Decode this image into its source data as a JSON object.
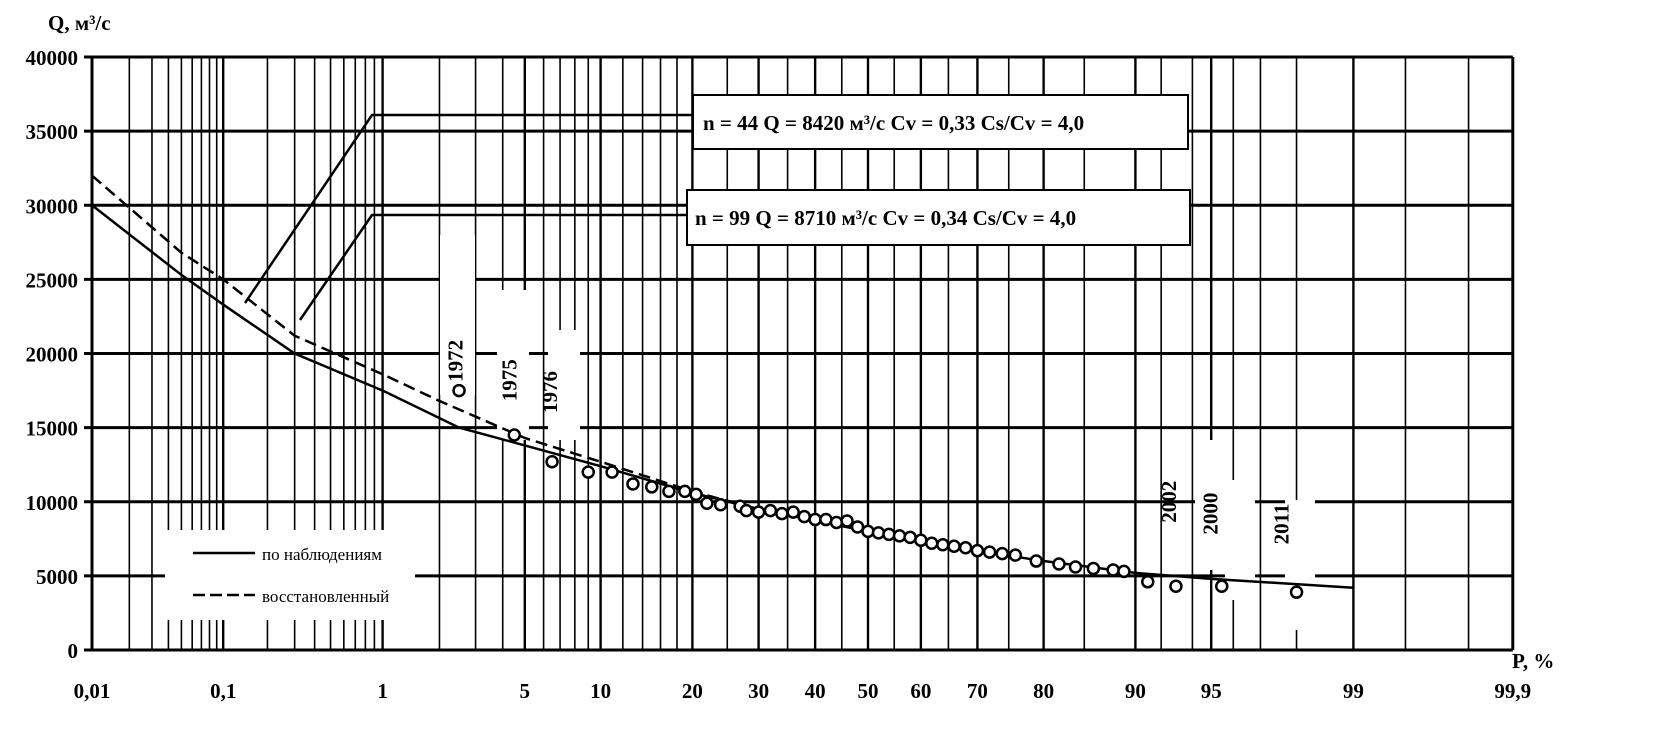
{
  "chart_data": {
    "type": "line",
    "scale": "normal probability (x), linear (y)",
    "ylabel": "Q, м³/с",
    "xlabel": "P, %",
    "ylim": [
      0,
      40000
    ],
    "xlim": [
      0.01,
      99.9
    ],
    "grid": true,
    "y_ticks": [
      0,
      5000,
      10000,
      15000,
      20000,
      25000,
      30000,
      35000,
      40000
    ],
    "x_ticks": [
      0.01,
      0.1,
      1,
      5,
      10,
      20,
      30,
      40,
      50,
      60,
      70,
      80,
      90,
      95,
      99,
      99.9
    ],
    "x_tick_labels": [
      "0,01",
      "0,1",
      "1",
      "5",
      "10",
      "20",
      "30",
      "40",
      "50",
      "60",
      "70",
      "80",
      "90",
      "95",
      "99",
      "99,9"
    ],
    "legend": {
      "placement": "bottom-left",
      "entries": [
        {
          "label": "по наблюдениям",
          "style": "solid"
        },
        {
          "label": "восстановленный",
          "style": "dashed"
        }
      ]
    },
    "series": [
      {
        "name": "по наблюдениям",
        "style": "solid",
        "x": [
          0.01,
          0.05,
          0.1,
          0.3,
          1,
          2.5,
          5,
          10,
          20,
          30,
          50,
          70,
          80,
          90,
          95,
          99
        ],
        "y": [
          30000,
          25300,
          23300,
          20000,
          17500,
          15000,
          13800,
          12400,
          10600,
          9500,
          8000,
          6700,
          6000,
          5200,
          4800,
          4200
        ]
      },
      {
        "name": "восстановленный",
        "style": "dashed",
        "x": [
          0.01,
          0.05,
          0.1,
          0.3,
          1,
          2,
          5,
          10,
          20,
          30
        ],
        "y": [
          32000,
          26800,
          25000,
          21200,
          18600,
          16800,
          14300,
          12700,
          10700,
          9500
        ]
      },
      {
        "name": "observations",
        "style": "circles",
        "x": [
          2.5,
          4.5,
          6.5,
          9,
          11,
          13,
          15,
          17,
          19,
          20.5,
          22,
          24,
          27,
          28,
          30,
          32,
          34,
          36,
          38,
          40,
          42,
          44,
          46,
          48,
          50,
          52,
          54,
          56,
          58,
          60,
          62,
          64,
          66,
          68,
          70,
          72,
          74,
          76,
          79,
          82,
          84,
          86,
          88,
          89,
          91,
          93,
          95.5,
          98
        ],
        "y": [
          17500,
          14500,
          12700,
          12000,
          12000,
          11200,
          11000,
          10700,
          10700,
          10500,
          9900,
          9800,
          9700,
          9400,
          9300,
          9400,
          9200,
          9300,
          9000,
          8800,
          8800,
          8600,
          8700,
          8300,
          8000,
          7900,
          7800,
          7700,
          7600,
          7400,
          7200,
          7100,
          7000,
          6900,
          6700,
          6600,
          6500,
          6400,
          6000,
          5800,
          5600,
          5500,
          5400,
          5300,
          4600,
          4300,
          4300,
          3900
        ]
      }
    ],
    "annotations": {
      "box1": "n = 44  Q = 8420 м³/с  Cv = 0,33  Cs/Cv = 4,0",
      "box2": "n = 99  Q = 8710 м³/с  Cv = 0,34  Cs/Cv = 4,0",
      "years": [
        {
          "label": "1972",
          "p": 2.6,
          "q": 19500
        },
        {
          "label": "1975",
          "p": 4.6,
          "q": 18200
        },
        {
          "label": "1976",
          "p": 6.8,
          "q": 17400
        },
        {
          "label": "2002",
          "p": 93,
          "q": 10000
        },
        {
          "label": "2000",
          "p": 95.3,
          "q": 9200
        },
        {
          "label": "2011",
          "p": 97.8,
          "q": 8500
        }
      ]
    }
  }
}
